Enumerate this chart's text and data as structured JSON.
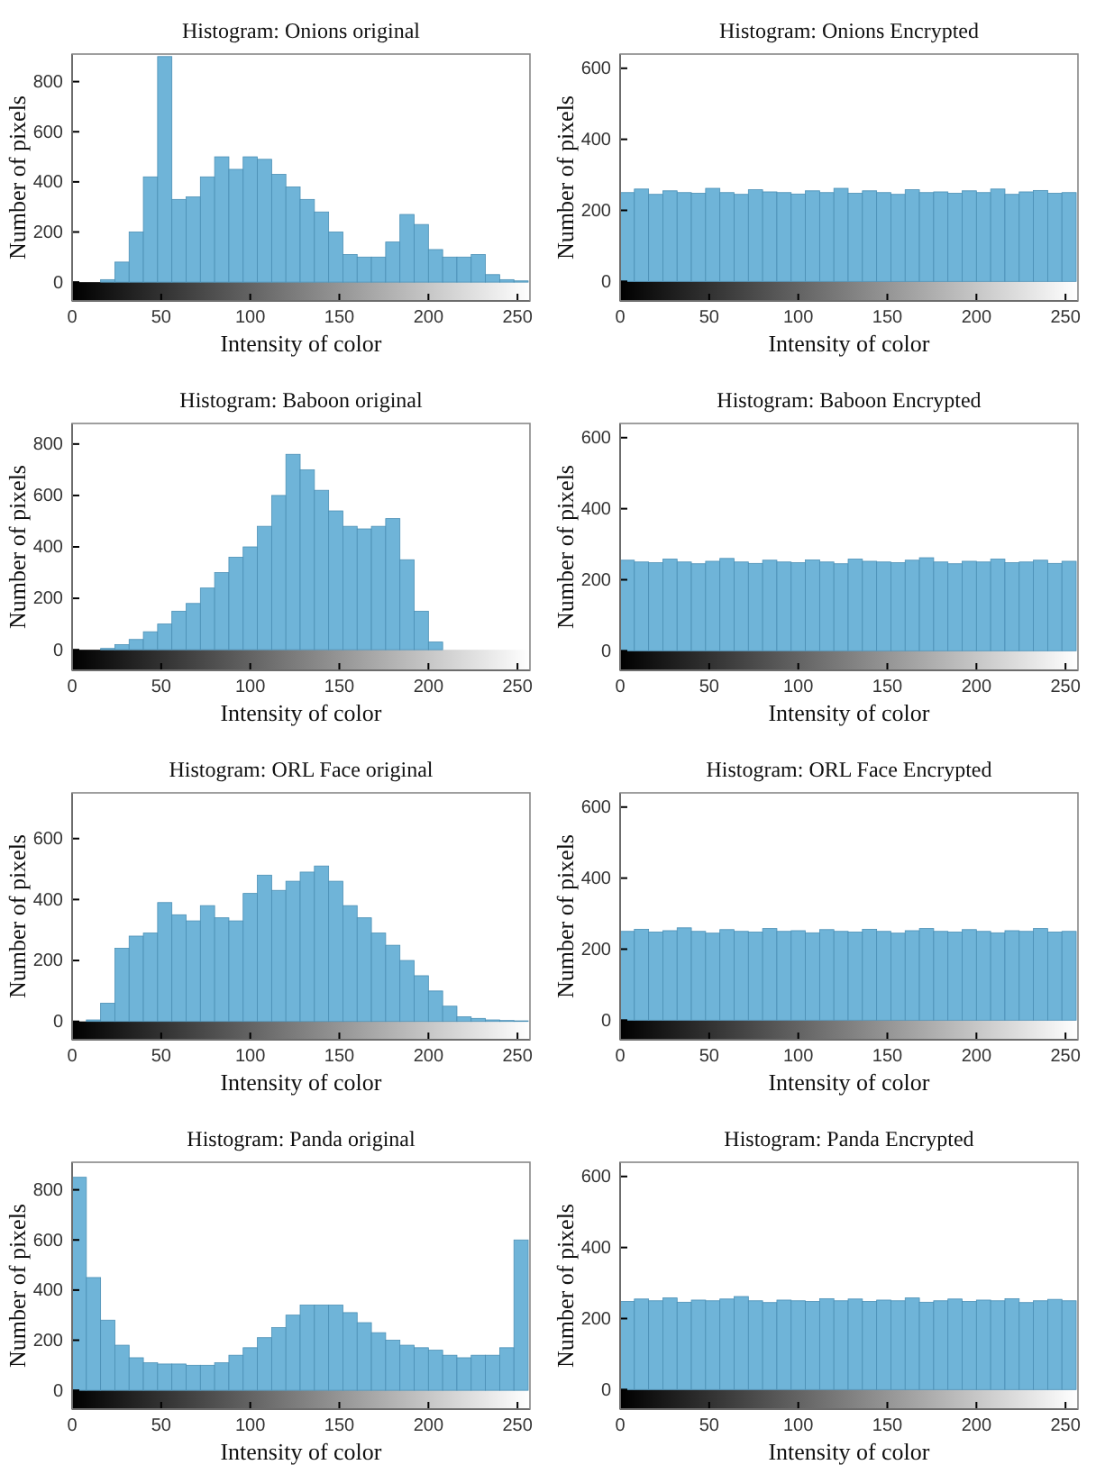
{
  "chart_data": [
    {
      "type": "histogram",
      "title": "Histogram: Onions original",
      "xlabel": "Intensity of color",
      "ylabel": "Number of pixels",
      "color": "#6fb4d8",
      "xlim": [
        0,
        257
      ],
      "ylim": [
        -75,
        910
      ],
      "xticks": [
        0,
        50,
        100,
        150,
        200,
        250
      ],
      "yticks": [
        0,
        200,
        400,
        600,
        800
      ],
      "bins": [
        0,
        8,
        16,
        24,
        32,
        40,
        48,
        56,
        64,
        72,
        80,
        88,
        96,
        104,
        112,
        120,
        128,
        136,
        144,
        152,
        160,
        168,
        176,
        184,
        192,
        200,
        208,
        216,
        224,
        232,
        240,
        248,
        256
      ],
      "values": [
        0,
        0,
        10,
        80,
        200,
        420,
        900,
        330,
        340,
        420,
        500,
        450,
        500,
        490,
        430,
        380,
        330,
        280,
        200,
        110,
        100,
        100,
        160,
        270,
        230,
        130,
        100,
        100,
        110,
        30,
        10,
        5
      ]
    },
    {
      "type": "histogram",
      "title": "Histogram: Onions Encrypted",
      "xlabel": "Intensity of color",
      "ylabel": "Number of pixels",
      "color": "#6fb4d8",
      "xlim": [
        0,
        257
      ],
      "ylim": [
        -55,
        640
      ],
      "xticks": [
        0,
        50,
        100,
        150,
        200,
        250
      ],
      "yticks": [
        0,
        200,
        400,
        600
      ],
      "bins": [
        0,
        8,
        16,
        24,
        32,
        40,
        48,
        56,
        64,
        72,
        80,
        88,
        96,
        104,
        112,
        120,
        128,
        136,
        144,
        152,
        160,
        168,
        176,
        184,
        192,
        200,
        208,
        216,
        224,
        232,
        240,
        248,
        256
      ],
      "values": [
        250,
        260,
        245,
        255,
        250,
        248,
        262,
        250,
        245,
        258,
        252,
        250,
        246,
        255,
        250,
        262,
        248,
        255,
        250,
        245,
        258,
        250,
        252,
        248,
        255,
        250,
        260,
        245,
        252,
        256,
        248,
        250
      ]
    },
    {
      "type": "histogram",
      "title": "Histogram: Baboon original",
      "xlabel": "Intensity of color",
      "ylabel": "Number of pixels",
      "color": "#6fb4d8",
      "xlim": [
        0,
        257
      ],
      "ylim": [
        -80,
        880
      ],
      "xticks": [
        0,
        50,
        100,
        150,
        200,
        250
      ],
      "yticks": [
        0,
        200,
        400,
        600,
        800
      ],
      "bins": [
        0,
        8,
        16,
        24,
        32,
        40,
        48,
        56,
        64,
        72,
        80,
        88,
        96,
        104,
        112,
        120,
        128,
        136,
        144,
        152,
        160,
        168,
        176,
        184,
        192,
        200,
        208,
        216,
        224,
        232,
        240,
        248,
        256
      ],
      "values": [
        0,
        0,
        5,
        20,
        40,
        70,
        100,
        150,
        180,
        240,
        300,
        360,
        400,
        480,
        600,
        760,
        700,
        620,
        540,
        480,
        470,
        480,
        510,
        350,
        150,
        30,
        0,
        0,
        0,
        0,
        0,
        0
      ]
    },
    {
      "type": "histogram",
      "title": "Histogram: Baboon Encrypted",
      "xlabel": "Intensity of color",
      "ylabel": "Number of pixels",
      "color": "#6fb4d8",
      "xlim": [
        0,
        257
      ],
      "ylim": [
        -55,
        640
      ],
      "xticks": [
        0,
        50,
        100,
        150,
        200,
        250
      ],
      "yticks": [
        0,
        200,
        400,
        600
      ],
      "bins": [
        0,
        8,
        16,
        24,
        32,
        40,
        48,
        56,
        64,
        72,
        80,
        88,
        96,
        104,
        112,
        120,
        128,
        136,
        144,
        152,
        160,
        168,
        176,
        184,
        192,
        200,
        208,
        216,
        224,
        232,
        240,
        248,
        256
      ],
      "values": [
        255,
        250,
        248,
        258,
        250,
        245,
        252,
        260,
        250,
        246,
        255,
        250,
        248,
        256,
        250,
        245,
        258,
        252,
        250,
        248,
        255,
        262,
        250,
        245,
        252,
        250,
        258,
        248,
        250,
        255,
        246,
        252
      ]
    },
    {
      "type": "histogram",
      "title": "Histogram: ORL Face original",
      "xlabel": "Intensity of color",
      "ylabel": "Number of pixels",
      "color": "#6fb4d8",
      "xlim": [
        0,
        257
      ],
      "ylim": [
        -60,
        750
      ],
      "xticks": [
        0,
        50,
        100,
        150,
        200,
        250
      ],
      "yticks": [
        0,
        200,
        400,
        600
      ],
      "bins": [
        0,
        8,
        16,
        24,
        32,
        40,
        48,
        56,
        64,
        72,
        80,
        88,
        96,
        104,
        112,
        120,
        128,
        136,
        144,
        152,
        160,
        168,
        176,
        184,
        192,
        200,
        208,
        216,
        224,
        232,
        240,
        248,
        256
      ],
      "values": [
        0,
        5,
        60,
        240,
        280,
        290,
        390,
        350,
        330,
        380,
        340,
        330,
        420,
        480,
        430,
        460,
        490,
        510,
        460,
        380,
        340,
        290,
        250,
        200,
        150,
        100,
        50,
        15,
        10,
        5,
        3,
        2
      ]
    },
    {
      "type": "histogram",
      "title": "Histogram: ORL Face Encrypted",
      "xlabel": "Intensity of color",
      "ylabel": "Number of pixels",
      "color": "#6fb4d8",
      "xlim": [
        0,
        257
      ],
      "ylim": [
        -55,
        640
      ],
      "xticks": [
        0,
        50,
        100,
        150,
        200,
        250
      ],
      "yticks": [
        0,
        200,
        400,
        600
      ],
      "bins": [
        0,
        8,
        16,
        24,
        32,
        40,
        48,
        56,
        64,
        72,
        80,
        88,
        96,
        104,
        112,
        120,
        128,
        136,
        144,
        152,
        160,
        168,
        176,
        184,
        192,
        200,
        208,
        216,
        224,
        232,
        240,
        248,
        256
      ],
      "values": [
        250,
        256,
        248,
        252,
        260,
        250,
        245,
        255,
        250,
        248,
        258,
        250,
        252,
        246,
        255,
        250,
        248,
        256,
        250,
        245,
        252,
        258,
        250,
        248,
        255,
        250,
        246,
        252,
        250,
        258,
        248,
        250
      ]
    },
    {
      "type": "histogram",
      "title": "Histogram: Panda original",
      "xlabel": "Intensity of color",
      "ylabel": "Number of pixels",
      "color": "#6fb4d8",
      "xlim": [
        0,
        257
      ],
      "ylim": [
        -75,
        910
      ],
      "xticks": [
        0,
        50,
        100,
        150,
        200,
        250
      ],
      "yticks": [
        0,
        200,
        400,
        600,
        800
      ],
      "bins": [
        0,
        8,
        16,
        24,
        32,
        40,
        48,
        56,
        64,
        72,
        80,
        88,
        96,
        104,
        112,
        120,
        128,
        136,
        144,
        152,
        160,
        168,
        176,
        184,
        192,
        200,
        208,
        216,
        224,
        232,
        240,
        248,
        256
      ],
      "values": [
        850,
        450,
        280,
        180,
        130,
        110,
        105,
        105,
        100,
        100,
        110,
        140,
        170,
        210,
        250,
        300,
        340,
        340,
        340,
        310,
        270,
        230,
        200,
        180,
        170,
        160,
        140,
        130,
        140,
        140,
        170,
        600
      ]
    },
    {
      "type": "histogram",
      "title": "Histogram: Panda Encrypted",
      "xlabel": "Intensity of color",
      "ylabel": "Number of pixels",
      "color": "#6fb4d8",
      "xlim": [
        0,
        257
      ],
      "ylim": [
        -55,
        640
      ],
      "xticks": [
        0,
        50,
        100,
        150,
        200,
        250
      ],
      "yticks": [
        0,
        200,
        400,
        600
      ],
      "bins": [
        0,
        8,
        16,
        24,
        32,
        40,
        48,
        56,
        64,
        72,
        80,
        88,
        96,
        104,
        112,
        120,
        128,
        136,
        144,
        152,
        160,
        168,
        176,
        184,
        192,
        200,
        208,
        216,
        224,
        232,
        240,
        248,
        256
      ],
      "values": [
        248,
        255,
        250,
        258,
        246,
        252,
        250,
        255,
        262,
        250,
        245,
        252,
        250,
        248,
        256,
        250,
        255,
        248,
        252,
        250,
        258,
        246,
        250,
        255,
        248,
        252,
        250,
        256,
        245,
        250,
        254,
        250
      ]
    }
  ]
}
